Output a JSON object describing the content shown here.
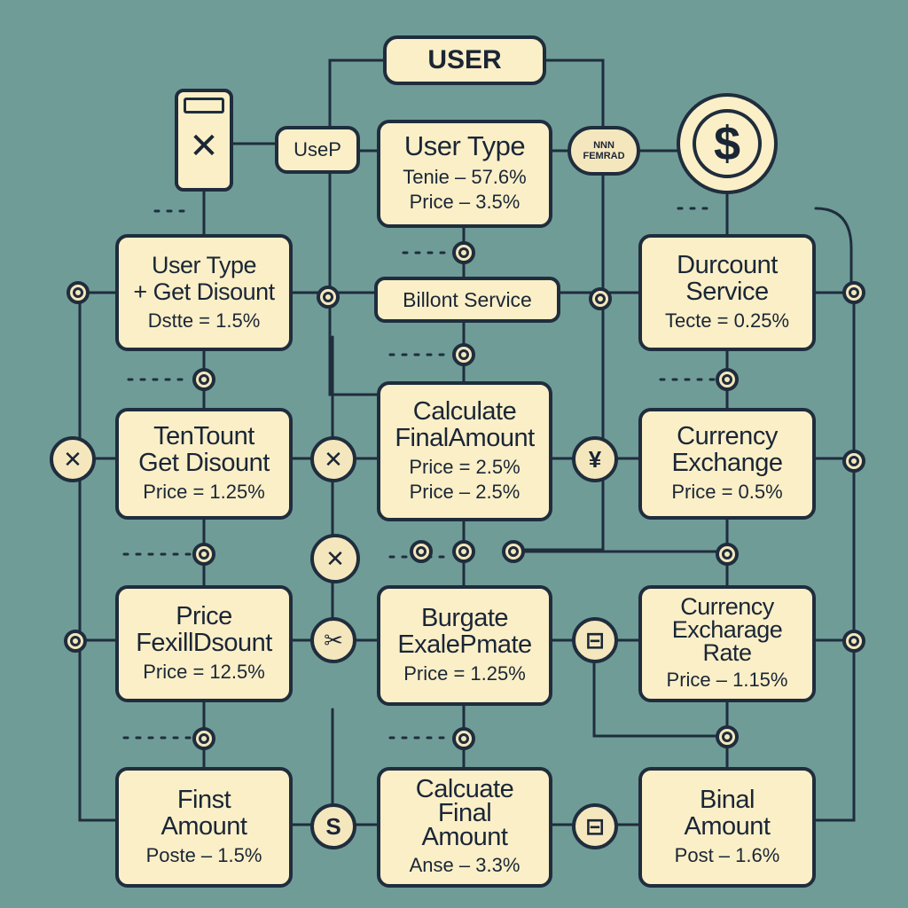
{
  "header": {
    "user_label": "USER"
  },
  "left_tag": {
    "icon_glyph": "✕",
    "label": "UseP"
  },
  "top_center": {
    "title": "User Type",
    "line1": "Tenie  –  57.6%",
    "line2": "Price  –  3.5%"
  },
  "right_tag": {
    "label": "NNN\nFEMRAD",
    "coin_glyph": "$"
  },
  "billing": {
    "label": "Billont Service"
  },
  "boxes": [
    {
      "title": "User Type\n+ Get Disount",
      "line": "Dstte  =  1.5%"
    },
    {
      "title": "Durcount\nService",
      "line": "Tecte  =  0.25%"
    },
    {
      "title": "TenTount\nGet Disount",
      "line": "Price  =  1.25%"
    },
    {
      "title": "Calculate\nFinalAmount",
      "line": "Price  =  2.5%\nPrice  –  2.5%"
    },
    {
      "title": "Currency\nExchange",
      "line": "Price  =  0.5%"
    },
    {
      "title": "Price\nFexillDsount",
      "line": "Price  =  12.5%"
    },
    {
      "title": "Burgate\nExalePmate",
      "line": "Price  =  1.25%"
    },
    {
      "title": "Currency\nExcharage\nRate",
      "line": "Price  –  1.15%"
    },
    {
      "title": "Finst\nAmount",
      "line": "Poste  –  1.5%"
    },
    {
      "title": "Calcuate\nFinal\nAmount",
      "line": "Anse  –  3.3%"
    },
    {
      "title": "Binal\nAmount",
      "line": "Post  –  1.6%"
    }
  ],
  "node_glyphs": {
    "x": "✕",
    "yen": "¥",
    "s": "S",
    "b": "⊟",
    "scissors": "✂"
  }
}
